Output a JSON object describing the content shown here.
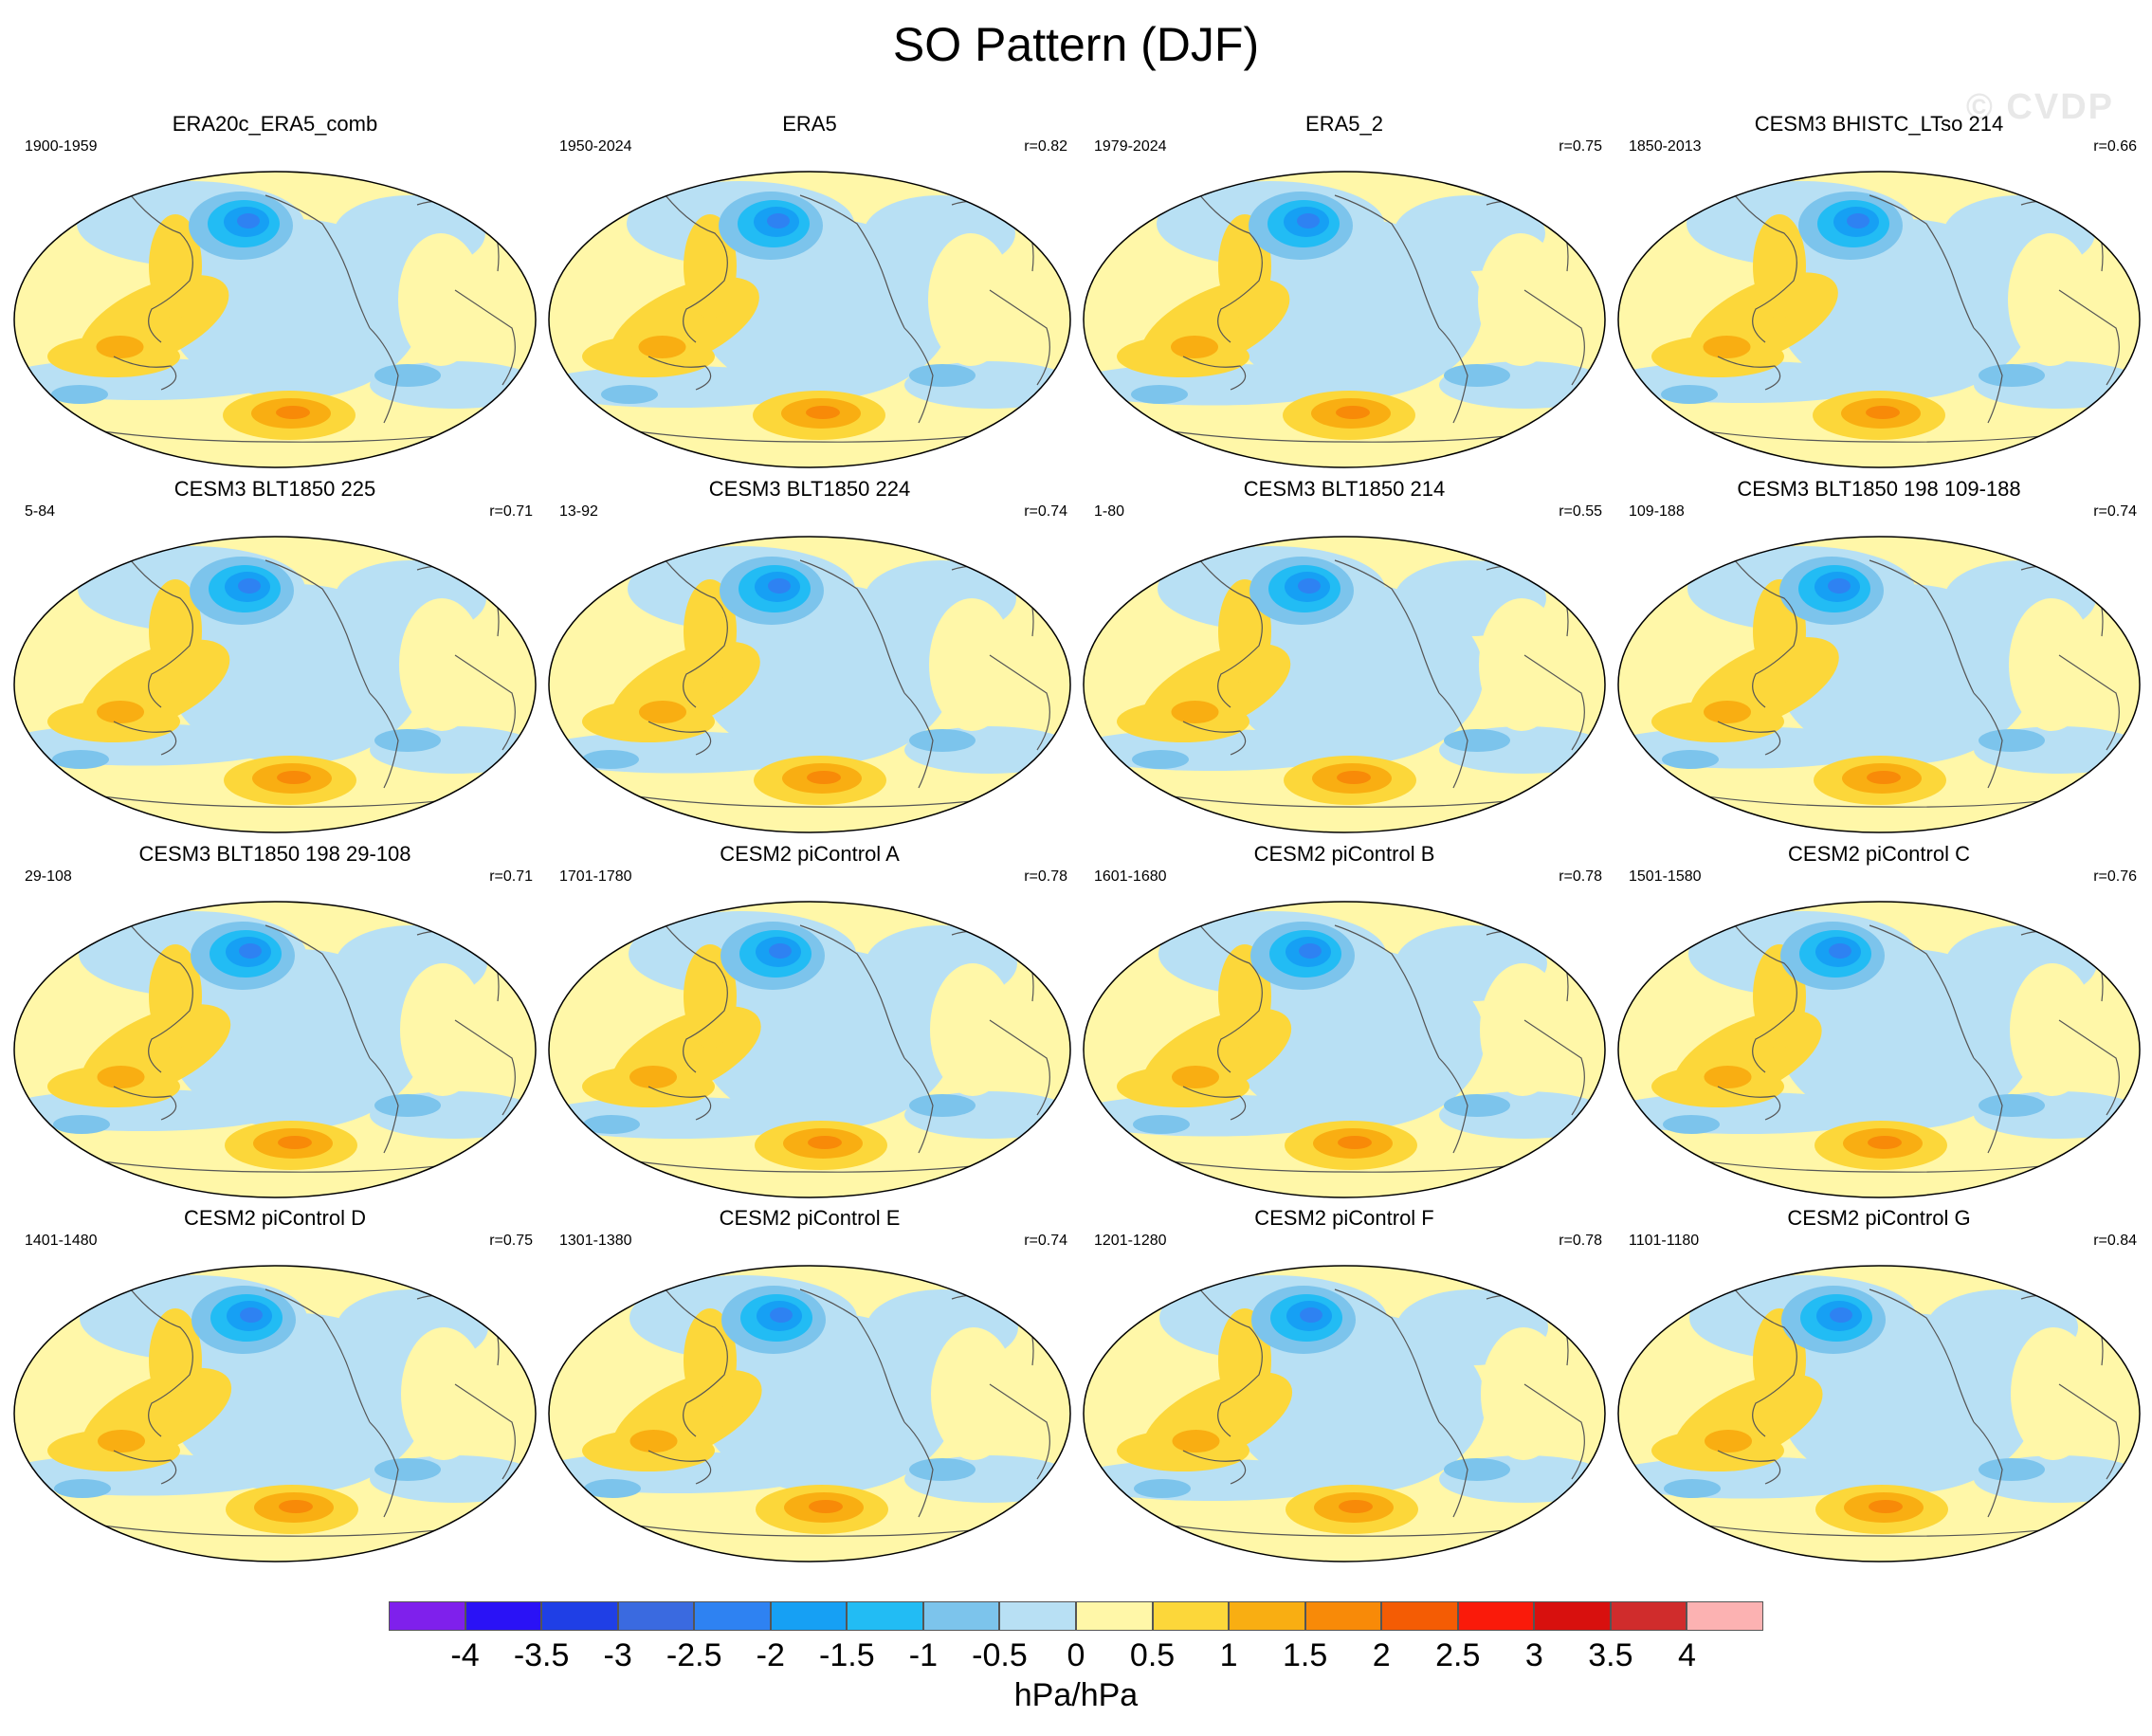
{
  "title": "SO Pattern (DJF)",
  "watermark": "© CVDP",
  "panels": [
    {
      "title": "ERA20c_ERA5_comb",
      "years": "1900-1959",
      "r": "",
      "variant": 0
    },
    {
      "title": "ERA5",
      "years": "1950-2024",
      "r": "r=0.82",
      "variant": 1
    },
    {
      "title": "ERA5_2",
      "years": "1979-2024",
      "r": "r=0.75",
      "variant": 2
    },
    {
      "title": "CESM3 BHISTC_LTso 214",
      "years": "1850-2013",
      "r": "r=0.66",
      "variant": 3
    },
    {
      "title": "CESM3 BLT1850 225",
      "years": "5-84",
      "r": "r=0.71",
      "variant": 4
    },
    {
      "title": "CESM3 BLT1850 224",
      "years": "13-92",
      "r": "r=0.74",
      "variant": 5
    },
    {
      "title": "CESM3 BLT1850 214",
      "years": "1-80",
      "r": "r=0.55",
      "variant": 6
    },
    {
      "title": "CESM3 BLT1850 198 109-188",
      "years": "109-188",
      "r": "r=0.74",
      "variant": 7
    },
    {
      "title": "CESM3 BLT1850 198 29-108",
      "years": "29-108",
      "r": "r=0.71",
      "variant": 8
    },
    {
      "title": "CESM2 piControl A",
      "years": "1701-1780",
      "r": "r=0.78",
      "variant": 9
    },
    {
      "title": "CESM2 piControl B",
      "years": "1601-1680",
      "r": "r=0.78",
      "variant": 10
    },
    {
      "title": "CESM2 piControl C",
      "years": "1501-1580",
      "r": "r=0.76",
      "variant": 11
    },
    {
      "title": "CESM2 piControl D",
      "years": "1401-1480",
      "r": "r=0.75",
      "variant": 12
    },
    {
      "title": "CESM2 piControl E",
      "years": "1301-1380",
      "r": "r=0.74",
      "variant": 13
    },
    {
      "title": "CESM2 piControl F",
      "years": "1201-1280",
      "r": "r=0.78",
      "variant": 14
    },
    {
      "title": "CESM2 piControl G",
      "years": "1101-1180",
      "r": "r=0.84",
      "variant": 15
    }
  ],
  "colorbar": {
    "colors": [
      "#7f20ec",
      "#2a12f6",
      "#1f3fe6",
      "#3a6ae0",
      "#2e82f2",
      "#16a0f4",
      "#22bcf4",
      "#7cc4ec",
      "#b8e0f4",
      "#fff7a8",
      "#fcd73a",
      "#f9ae12",
      "#f88a08",
      "#f45c04",
      "#fa1a0a",
      "#d8100e",
      "#d02c2c",
      "#fcb2b2"
    ],
    "labels": [
      "-4",
      "-3.5",
      "-3",
      "-2.5",
      "-2",
      "-1.5",
      "-1",
      "-0.5",
      "0",
      "0.5",
      "1",
      "1.5",
      "2",
      "2.5",
      "3",
      "3.5",
      "4"
    ],
    "units": "hPa/hPa"
  }
}
